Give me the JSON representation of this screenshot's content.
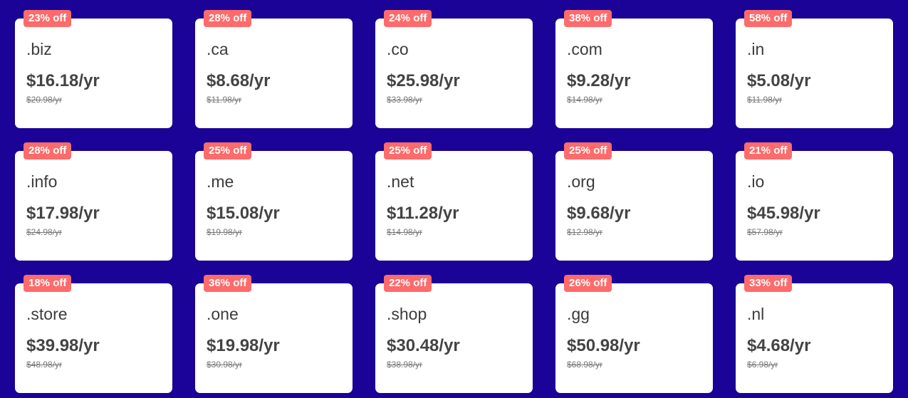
{
  "colors": {
    "background": "#1a0396",
    "badge": "#fd6b6b",
    "card": "#ffffff"
  },
  "domains": [
    {
      "tld": ".biz",
      "price": "$16.18/yr",
      "original": "$20.98/yr",
      "discount": "23% off"
    },
    {
      "tld": ".ca",
      "price": "$8.68/yr",
      "original": "$11.98/yr",
      "discount": "28% off"
    },
    {
      "tld": ".co",
      "price": "$25.98/yr",
      "original": "$33.98/yr",
      "discount": "24% off"
    },
    {
      "tld": ".com",
      "price": "$9.28/yr",
      "original": "$14.98/yr",
      "discount": "38% off"
    },
    {
      "tld": ".in",
      "price": "$5.08/yr",
      "original": "$11.98/yr",
      "discount": "58% off"
    },
    {
      "tld": ".info",
      "price": "$17.98/yr",
      "original": "$24.98/yr",
      "discount": "28% off"
    },
    {
      "tld": ".me",
      "price": "$15.08/yr",
      "original": "$19.98/yr",
      "discount": "25% off"
    },
    {
      "tld": ".net",
      "price": "$11.28/yr",
      "original": "$14.98/yr",
      "discount": "25% off"
    },
    {
      "tld": ".org",
      "price": "$9.68/yr",
      "original": "$12.98/yr",
      "discount": "25% off"
    },
    {
      "tld": ".io",
      "price": "$45.98/yr",
      "original": "$57.98/yr",
      "discount": "21% off"
    },
    {
      "tld": ".store",
      "price": "$39.98/yr",
      "original": "$48.98/yr",
      "discount": "18% off"
    },
    {
      "tld": ".one",
      "price": "$19.98/yr",
      "original": "$30.98/yr",
      "discount": "36% off"
    },
    {
      "tld": ".shop",
      "price": "$30.48/yr",
      "original": "$38.98/yr",
      "discount": "22% off"
    },
    {
      "tld": ".gg",
      "price": "$50.98/yr",
      "original": "$68.98/yr",
      "discount": "26% off"
    },
    {
      "tld": ".nl",
      "price": "$4.68/yr",
      "original": "$6.98/yr",
      "discount": "33% off"
    }
  ]
}
